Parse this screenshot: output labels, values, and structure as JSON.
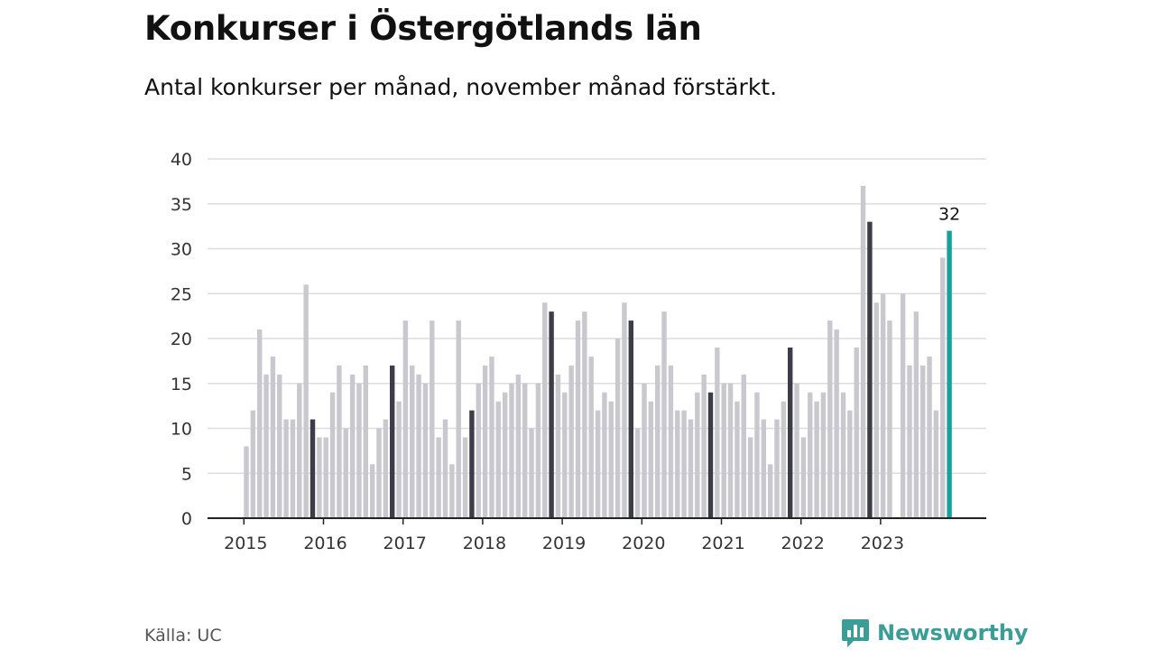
{
  "header": {
    "title": "Konkurser i Östergötlands län",
    "subtitle": "Antal konkurser per månad, november månad förstärkt."
  },
  "footer": {
    "source": "Källa: UC",
    "brand": "Newsworthy"
  },
  "colors": {
    "bar": "#c8c8ce",
    "highlight": "#3d3d4a",
    "latest": "#14a39a",
    "grid": "#dcdce2",
    "axis": "#222222",
    "brand": "#3a9e96"
  },
  "chart_data": {
    "type": "bar",
    "x_start": "2015-01",
    "xticks": [
      "2015",
      "2016",
      "2017",
      "2018",
      "2019",
      "2020",
      "2021",
      "2022",
      "2023"
    ],
    "yticks": [
      0,
      5,
      10,
      15,
      20,
      25,
      30,
      35,
      40
    ],
    "ylim": [
      0,
      40
    ],
    "grid": true,
    "highlight_month": "November",
    "values": [
      8,
      12,
      21,
      16,
      18,
      16,
      11,
      11,
      15,
      26,
      11,
      9,
      9,
      14,
      17,
      10,
      16,
      15,
      17,
      6,
      10,
      11,
      17,
      13,
      22,
      17,
      16,
      15,
      22,
      9,
      11,
      6,
      22,
      9,
      12,
      15,
      17,
      18,
      13,
      14,
      15,
      16,
      15,
      10,
      15,
      24,
      23,
      16,
      14,
      17,
      22,
      23,
      18,
      12,
      14,
      13,
      20,
      24,
      22,
      10,
      15,
      13,
      17,
      23,
      17,
      12,
      12,
      11,
      14,
      16,
      14,
      19,
      15,
      15,
      13,
      16,
      9,
      14,
      11,
      6,
      11,
      13,
      19,
      15,
      9,
      14,
      13,
      14,
      22,
      21,
      14,
      12,
      19,
      37,
      33,
      24,
      25,
      22,
      0,
      25,
      17,
      23,
      17,
      18,
      12,
      29,
      32
    ],
    "data_labels": [
      {
        "index": 106,
        "text": "32"
      }
    ]
  }
}
